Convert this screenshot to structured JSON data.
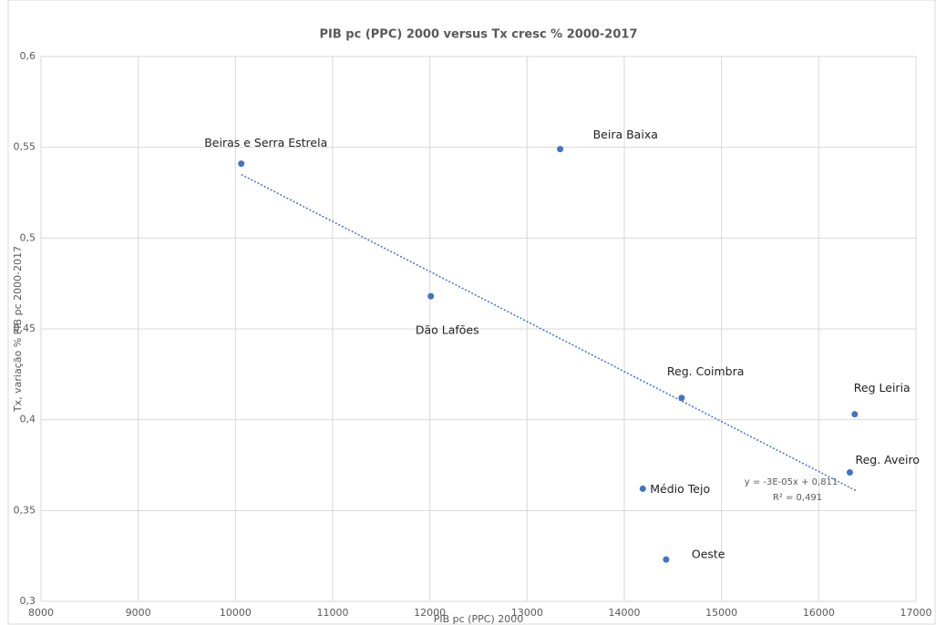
{
  "chart_data": {
    "type": "scatter",
    "title": "PIB pc (PPC) 2000 versus Tx cresc % 2000-2017",
    "xlabel": "PIB pc (PPC) 2000",
    "ylabel": "Tx, variação % PIB pc 2000-2017",
    "color": "#4472c4",
    "x": [
      10060,
      13340,
      12010,
      14590,
      16370,
      16320,
      14190,
      14430
    ],
    "values": [
      0.541,
      0.549,
      0.468,
      0.412,
      0.403,
      0.371,
      0.362,
      0.323
    ],
    "point_labels": [
      "Beiras e Serra Estrela",
      "Beira Baixa",
      "Dão Lafões",
      "Reg. Coimbra",
      "Reg Leiria",
      "Reg. Aveiro",
      "Médio Tejo",
      "Oeste"
    ],
    "trendline": {
      "x": [
        10060,
        16380
      ],
      "values": [
        0.535,
        0.361
      ],
      "color": "#4472c4",
      "equation": "y = -3E-05x + 0,811",
      "r2": "R² = 0,491"
    },
    "xlim": [
      8000,
      17000
    ],
    "xticks": [
      8000,
      9000,
      10000,
      11000,
      12000,
      13000,
      14000,
      15000,
      16000,
      17000
    ],
    "ylim": [
      0.3,
      0.6
    ],
    "yticks": [
      {
        "value": 0.3,
        "label": "0,3"
      },
      {
        "value": 0.35,
        "label": "0,35"
      },
      {
        "value": 0.4,
        "label": "0,4"
      },
      {
        "value": 0.45,
        "label": "0,45"
      },
      {
        "value": 0.5,
        "label": "0,5"
      },
      {
        "value": 0.55,
        "label": "0,55"
      },
      {
        "value": 0.6,
        "label": "0,6"
      }
    ],
    "grid": true
  }
}
